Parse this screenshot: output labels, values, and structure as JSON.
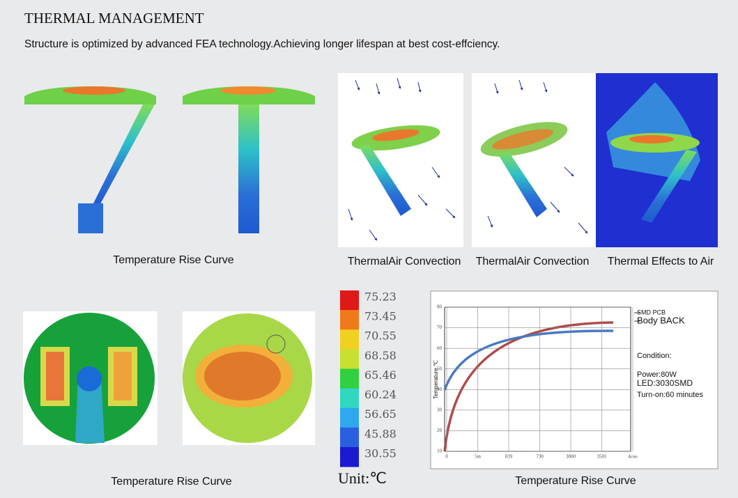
{
  "header": {
    "title": "THERMAL MANAGEMENT",
    "subtitle": "Structure is optimized by advanced FEA technology.Achieving longer lifespan at best cost-effciency."
  },
  "top_captions": [
    "Temperature Rise Curve",
    "ThermalAir Convection",
    "ThermalAir Convection",
    "Thermal Effects to Air"
  ],
  "bottom_captions": [
    "Temperature Rise Curve",
    "Temperature Rise Curve"
  ],
  "color_scale": {
    "labels": [
      "75.23",
      "73.45",
      "70.55",
      "68.58",
      "65.46",
      "60.24",
      "56.65",
      "45.88",
      "30.55"
    ],
    "unit": "Unit:℃"
  },
  "curve_chart": {
    "y_label": "Temperature ℃",
    "y_tick_labels": [
      "80",
      "70",
      "60",
      "50",
      "40",
      "30",
      "20",
      "10"
    ],
    "x_tick_labels": [
      "0",
      "5m",
      "039",
      "730",
      "3800",
      "3501",
      "4coo"
    ],
    "legend": [
      "SMD PCB",
      "Body BACK"
    ],
    "conditions": [
      "Condition:",
      "Power:80W",
      "LED:3030SMD",
      "Turn-on:60 minutes"
    ]
  }
}
